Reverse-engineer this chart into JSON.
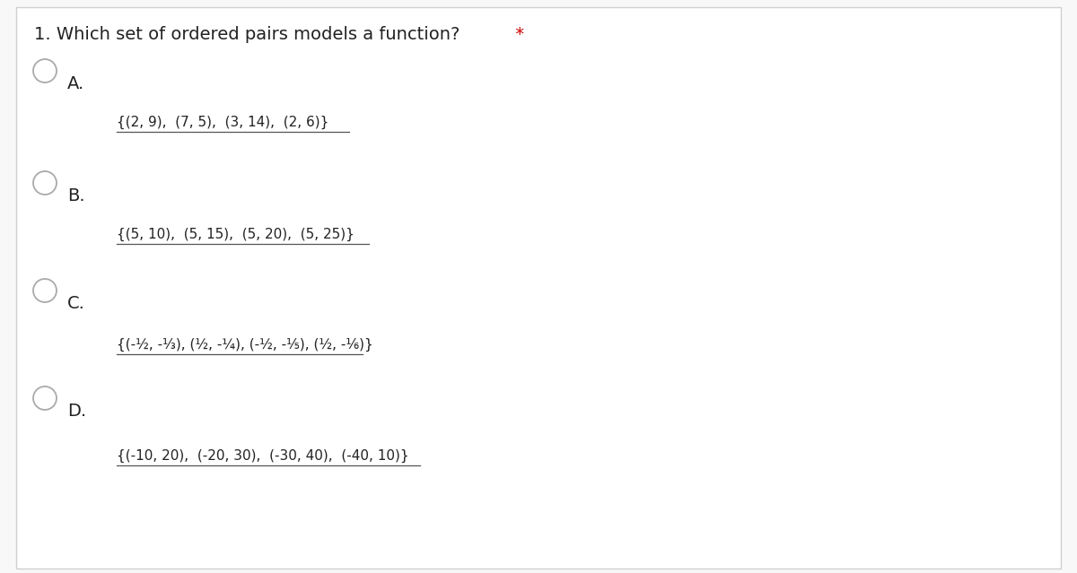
{
  "title": "1. Which set of ordered pairs models a function?",
  "bg_color": "#f8f8f8",
  "card_color": "#ffffff",
  "border_color": "#d0d0d0",
  "text_color": "#222222",
  "circle_color": "#aaaaaa",
  "asterisk_color": "#cc0000",
  "title_fontsize": 14,
  "label_fontsize": 14,
  "text_fontsize": 11,
  "small_text_fontsize": 9,
  "options": [
    {
      "label": "A.",
      "text": "{(2, 9),  (7, 5),  (3, 14),  (2, 6)}",
      "underline": true
    },
    {
      "label": "B.",
      "text": "{(5, 10),  (5, 15),  (5, 20),  (5, 25)}",
      "underline": true
    },
    {
      "label": "C.",
      "text": "{(-½, -⅓), (½, -¼), (-½, -⅕), (½, -⅙)}",
      "underline": true
    },
    {
      "label": "D.",
      "text": "{(-10, 20),  (-20, 30),  (-30, 40),  (-40, 10)}",
      "underline": true
    }
  ]
}
